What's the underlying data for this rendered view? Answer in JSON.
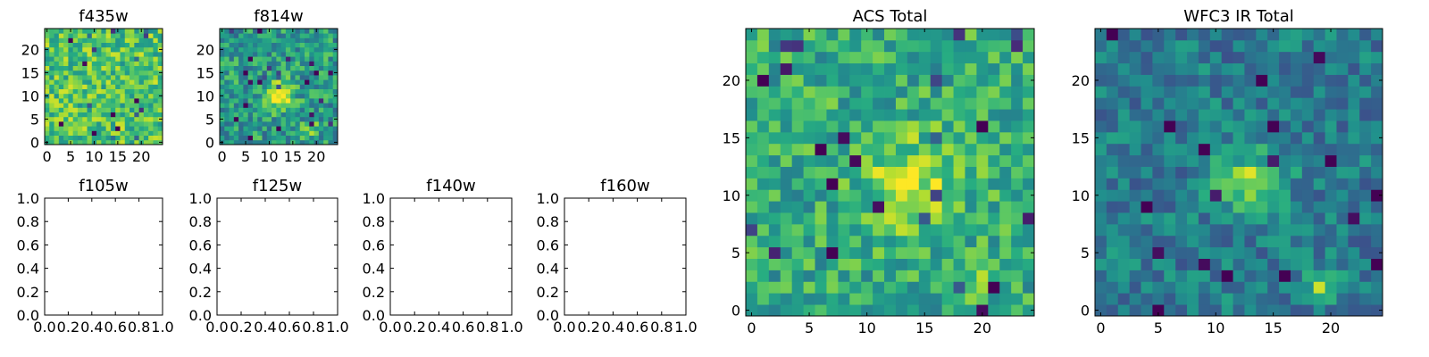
{
  "chart_data": [
    {
      "type": "heatmap",
      "title": "f435w",
      "grid_size": [
        25,
        25
      ],
      "xlim": [
        -0.5,
        24.5
      ],
      "ylim": [
        -0.5,
        24.5
      ],
      "xticks": [
        0,
        5,
        10,
        15,
        20
      ],
      "yticks": [
        0,
        5,
        10,
        15,
        20
      ],
      "colormap": "viridis",
      "pattern": "noise",
      "seed": 11,
      "base": 0.72,
      "noise": 0.22,
      "sources": []
    },
    {
      "type": "heatmap",
      "title": "f814w",
      "grid_size": [
        25,
        25
      ],
      "xlim": [
        -0.5,
        24.5
      ],
      "ylim": [
        -0.5,
        24.5
      ],
      "xticks": [
        0,
        5,
        10,
        15,
        20
      ],
      "yticks": [
        0,
        5,
        10,
        15,
        20
      ],
      "colormap": "viridis",
      "pattern": "noise",
      "seed": 23,
      "base": 0.55,
      "noise": 0.22,
      "sources": [
        {
          "x": 12,
          "y": 10,
          "amp": 0.45,
          "sigma": 2.2
        },
        {
          "x": 19,
          "y": 3,
          "amp": 0.25,
          "sigma": 1.2
        }
      ]
    },
    {
      "type": "empty",
      "title": "f105w",
      "xlim": [
        0.0,
        1.0
      ],
      "ylim": [
        0.0,
        1.0
      ],
      "xtick_labels": [
        "0.0",
        "0.2",
        "0.4",
        "0.6",
        "0.8",
        "1.0"
      ],
      "ytick_labels": [
        "0.0",
        "0.2",
        "0.4",
        "0.6",
        "0.8",
        "1.0"
      ]
    },
    {
      "type": "empty",
      "title": "f125w",
      "xlim": [
        0.0,
        1.0
      ],
      "ylim": [
        0.0,
        1.0
      ],
      "xtick_labels": [
        "0.0",
        "0.2",
        "0.4",
        "0.6",
        "0.8",
        "1.0"
      ],
      "ytick_labels": [
        "0.0",
        "0.2",
        "0.4",
        "0.6",
        "0.8",
        "1.0"
      ]
    },
    {
      "type": "empty",
      "title": "f140w",
      "xlim": [
        0.0,
        1.0
      ],
      "ylim": [
        0.0,
        1.0
      ],
      "xtick_labels": [
        "0.0",
        "0.2",
        "0.4",
        "0.6",
        "0.8",
        "1.0"
      ],
      "ytick_labels": [
        "0.0",
        "0.2",
        "0.4",
        "0.6",
        "0.8",
        "1.0"
      ]
    },
    {
      "type": "empty",
      "title": "f160w",
      "xlim": [
        0.0,
        1.0
      ],
      "ylim": [
        0.0,
        1.0
      ],
      "xtick_labels": [
        "0.0",
        "0.2",
        "0.4",
        "0.6",
        "0.8",
        "1.0"
      ],
      "ytick_labels": [
        "0.0",
        "0.2",
        "0.4",
        "0.6",
        "0.8",
        "1.0"
      ]
    },
    {
      "type": "heatmap",
      "title": "ACS Total",
      "grid_size": [
        25,
        25
      ],
      "xlim": [
        -0.5,
        24.5
      ],
      "ylim": [
        -0.5,
        24.5
      ],
      "xticks": [
        0,
        5,
        10,
        15,
        20
      ],
      "yticks": [
        0,
        5,
        10,
        15,
        20
      ],
      "colormap": "viridis",
      "pattern": "noise",
      "seed": 37,
      "base": 0.62,
      "noise": 0.2,
      "sources": [
        {
          "x": 14,
          "y": 11,
          "amp": 0.3,
          "sigma": 2.8
        },
        {
          "x": 19,
          "y": 2,
          "amp": 0.25,
          "sigma": 1.1
        }
      ]
    },
    {
      "type": "heatmap",
      "title": "WFC3 IR Total",
      "grid_size": [
        25,
        25
      ],
      "xlim": [
        -0.5,
        24.5
      ],
      "ylim": [
        -0.5,
        24.5
      ],
      "xticks": [
        0,
        5,
        10,
        15,
        20
      ],
      "yticks": [
        0,
        5,
        10,
        15,
        20
      ],
      "colormap": "viridis",
      "pattern": "noise",
      "seed": 53,
      "base": 0.42,
      "noise": 0.17,
      "sources": [
        {
          "x": 13,
          "y": 11,
          "amp": 0.45,
          "sigma": 2.0
        },
        {
          "x": 19,
          "y": 2,
          "amp": 0.4,
          "sigma": 1.0
        }
      ]
    }
  ]
}
